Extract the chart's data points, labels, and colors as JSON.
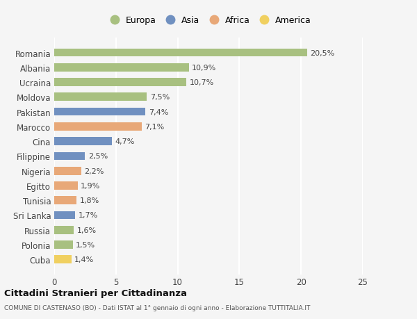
{
  "countries": [
    "Romania",
    "Albania",
    "Ucraina",
    "Moldova",
    "Pakistan",
    "Marocco",
    "Cina",
    "Filippine",
    "Nigeria",
    "Egitto",
    "Tunisia",
    "Sri Lanka",
    "Russia",
    "Polonia",
    "Cuba"
  ],
  "values": [
    20.5,
    10.9,
    10.7,
    7.5,
    7.4,
    7.1,
    4.7,
    2.5,
    2.2,
    1.9,
    1.8,
    1.7,
    1.6,
    1.5,
    1.4
  ],
  "continents": [
    "Europa",
    "Europa",
    "Europa",
    "Europa",
    "Asia",
    "Africa",
    "Asia",
    "Asia",
    "Africa",
    "Africa",
    "Africa",
    "Asia",
    "Europa",
    "Europa",
    "America"
  ],
  "colors": {
    "Europa": "#a8c080",
    "Asia": "#7090c0",
    "Africa": "#e8a878",
    "America": "#f0d060"
  },
  "xlim": [
    0,
    25
  ],
  "xticks": [
    0,
    5,
    10,
    15,
    20,
    25
  ],
  "title": "Cittadini Stranieri per Cittadinanza",
  "subtitle": "COMUNE DI CASTENASO (BO) - Dati ISTAT al 1° gennaio di ogni anno - Elaborazione TUTTITALIA.IT",
  "background_color": "#f5f5f5",
  "grid_color": "#ffffff",
  "bar_height": 0.55,
  "label_fontsize": 8,
  "tick_fontsize": 8.5
}
